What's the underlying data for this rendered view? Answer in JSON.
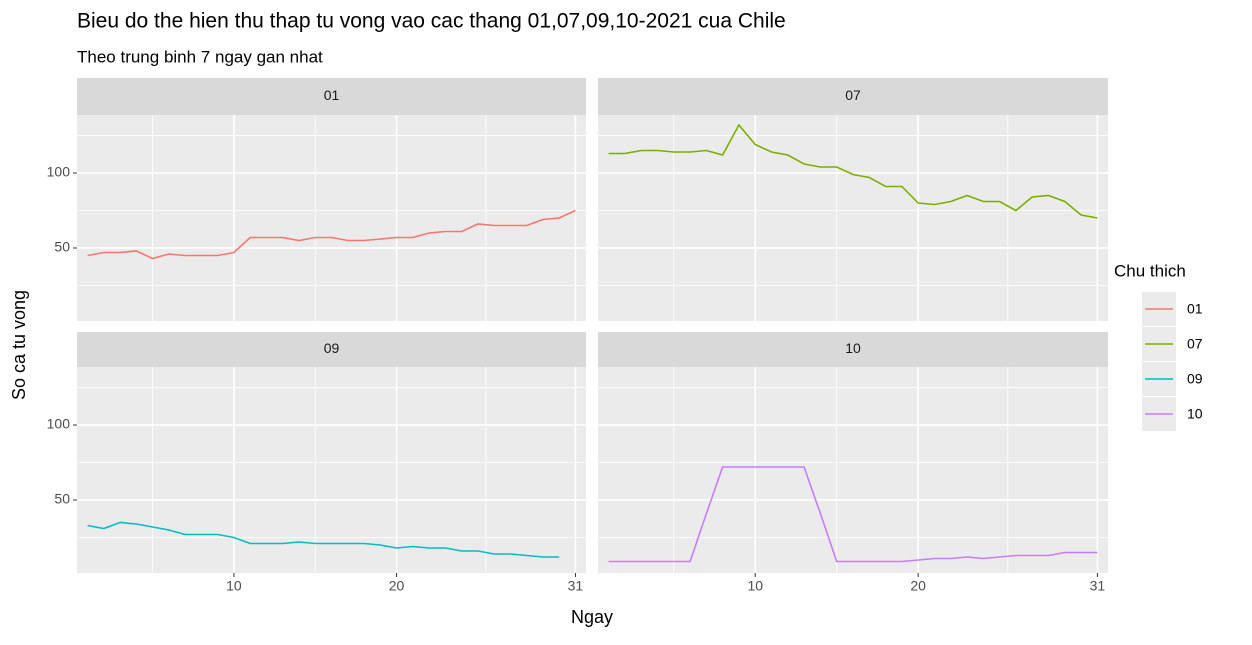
{
  "chart_data": {
    "type": "line",
    "title": "Bieu do the hien thu thap tu vong vao cac thang 01,07,09,10-2021 cua Chile",
    "subtitle": "Theo trung binh 7 ngay gan nhat",
    "x_label": "Ngay",
    "y_label": "So ca tu vong",
    "legend_title": "Chu thich",
    "legend_position": "right",
    "facet": true,
    "grid": true,
    "x": [
      1,
      2,
      3,
      4,
      5,
      6,
      7,
      8,
      9,
      10,
      11,
      12,
      13,
      14,
      15,
      16,
      17,
      18,
      19,
      20,
      21,
      22,
      23,
      24,
      25,
      26,
      27,
      28,
      29,
      30,
      31
    ],
    "xlim": [
      0.35,
      31.65
    ],
    "xticks": [
      10,
      20,
      31
    ],
    "minor_xticks": [
      5,
      15,
      25.5
    ],
    "ylim": [
      1.3,
      138.7
    ],
    "yticks": [
      50,
      100
    ],
    "minor_yticks": [
      25,
      75,
      125
    ],
    "series": [
      {
        "name": "01",
        "color": "#F8766D",
        "values": [
          45,
          47,
          47,
          48,
          43,
          46,
          45,
          45,
          45,
          47,
          57,
          57,
          57,
          55,
          57,
          57,
          55,
          55,
          56,
          57,
          57,
          60,
          61,
          61,
          66,
          65,
          65,
          65,
          69,
          70,
          75
        ]
      },
      {
        "name": "07",
        "color": "#7CAE00",
        "values": [
          113,
          113,
          115,
          115,
          114,
          114,
          115,
          112,
          132,
          119,
          114,
          112,
          106,
          104,
          104,
          99,
          97,
          91,
          91,
          80,
          79,
          81,
          85,
          81,
          81,
          75,
          84,
          85,
          81,
          72,
          70
        ]
      },
      {
        "name": "09",
        "color": "#00BFC4",
        "values": [
          33,
          31,
          35,
          34,
          32,
          30,
          27,
          27,
          27,
          25,
          21,
          21,
          21,
          22,
          21,
          21,
          21,
          21,
          20,
          18,
          19,
          18,
          18,
          16,
          16,
          14,
          14,
          13,
          12,
          12,
          null
        ]
      },
      {
        "name": "10",
        "color": "#C77CFF",
        "values": [
          9,
          9,
          9,
          9,
          9,
          9,
          41,
          72,
          72,
          72,
          72,
          72,
          72,
          41,
          9,
          9,
          9,
          9,
          9,
          10,
          11,
          11,
          12,
          11,
          12,
          13,
          13,
          13,
          15,
          15,
          15
        ]
      }
    ]
  }
}
